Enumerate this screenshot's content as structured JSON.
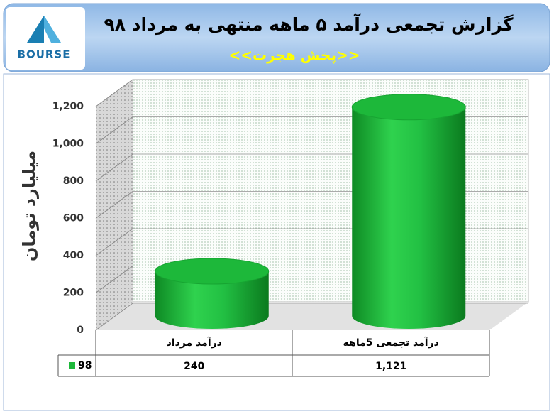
{
  "logo": {
    "text": "BOURSE"
  },
  "chart_data": {
    "type": "bar",
    "title": "گزارش تجمعی درآمد ۵ ماهه منتهی به مرداد ۹۸",
    "subtitle": "<<پخش هجرت>>",
    "y_label": "میلیارد تومان",
    "categories": [
      "درآمد مرداد",
      "درآمد تجمعی 5ماهه"
    ],
    "series": [
      {
        "name": "98",
        "color": "#1db83a",
        "values": [
          240,
          1121
        ],
        "value_labels": [
          "240",
          "1,121"
        ]
      }
    ],
    "ylim": [
      0,
      1200
    ],
    "yticks": [
      0,
      200,
      400,
      600,
      800,
      {
        "value": 1000,
        "label": "1,000"
      },
      {
        "value": 1200,
        "label": "1,200"
      }
    ],
    "grid": true
  }
}
